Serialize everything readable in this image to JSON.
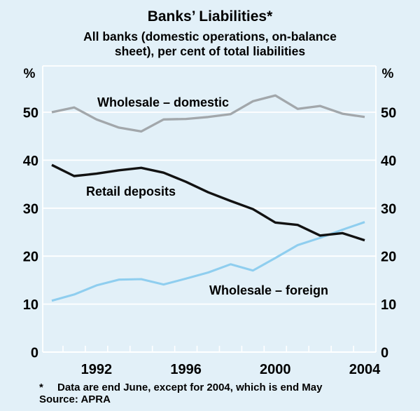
{
  "header": {
    "title": "Banks’ Liabilities*",
    "subtitle_lines": [
      "All banks (domestic operations, on-balance",
      "sheet), per cent of total liabilities"
    ]
  },
  "chart_data": {
    "type": "line",
    "title": "Banks’ Liabilities*",
    "subtitle": "All banks (domestic operations, on-balance sheet), per cent of total liabilities",
    "x": [
      1990,
      1991,
      1992,
      1993,
      1994,
      1995,
      1996,
      1997,
      1998,
      1999,
      2000,
      2001,
      2002,
      2003,
      2004
    ],
    "series": [
      {
        "name": "Wholesale – domestic",
        "color": "#A2A7AB",
        "values": [
          50.0,
          51.0,
          48.5,
          46.8,
          46.0,
          48.5,
          48.6,
          49.0,
          49.6,
          52.3,
          53.5,
          50.7,
          51.3,
          49.7,
          49.0
        ]
      },
      {
        "name": "Wholesale – foreign",
        "color": "#8FCEEF",
        "values": [
          10.7,
          12.0,
          13.9,
          15.1,
          15.2,
          14.1,
          15.3,
          16.6,
          18.3,
          17.0,
          19.6,
          22.3,
          23.8,
          25.5,
          27.1
        ]
      },
      {
        "name": "Retail deposits",
        "color": "#121212",
        "values": [
          39.0,
          36.7,
          37.2,
          37.9,
          38.4,
          37.4,
          35.5,
          33.3,
          31.5,
          29.8,
          27.0,
          26.5,
          24.3,
          24.8,
          23.3
        ]
      }
    ],
    "ylabel_left": "%",
    "ylabel_right": "%",
    "yticks": [
      0,
      10,
      20,
      30,
      40,
      50
    ],
    "ylim": [
      0,
      59
    ],
    "xtick_labels": [
      "1992",
      "1996",
      "2000",
      "2004"
    ],
    "grid": "horizontal-white-gridlines",
    "legend": "inline-series-labels",
    "background_color": "#E2F0F8",
    "grid_color": "#FFFFFF"
  },
  "footer": {
    "footnote_marker": "*",
    "footnote_text": "Data are end June, except for 2004, which is end May",
    "source": "Source: APRA"
  }
}
